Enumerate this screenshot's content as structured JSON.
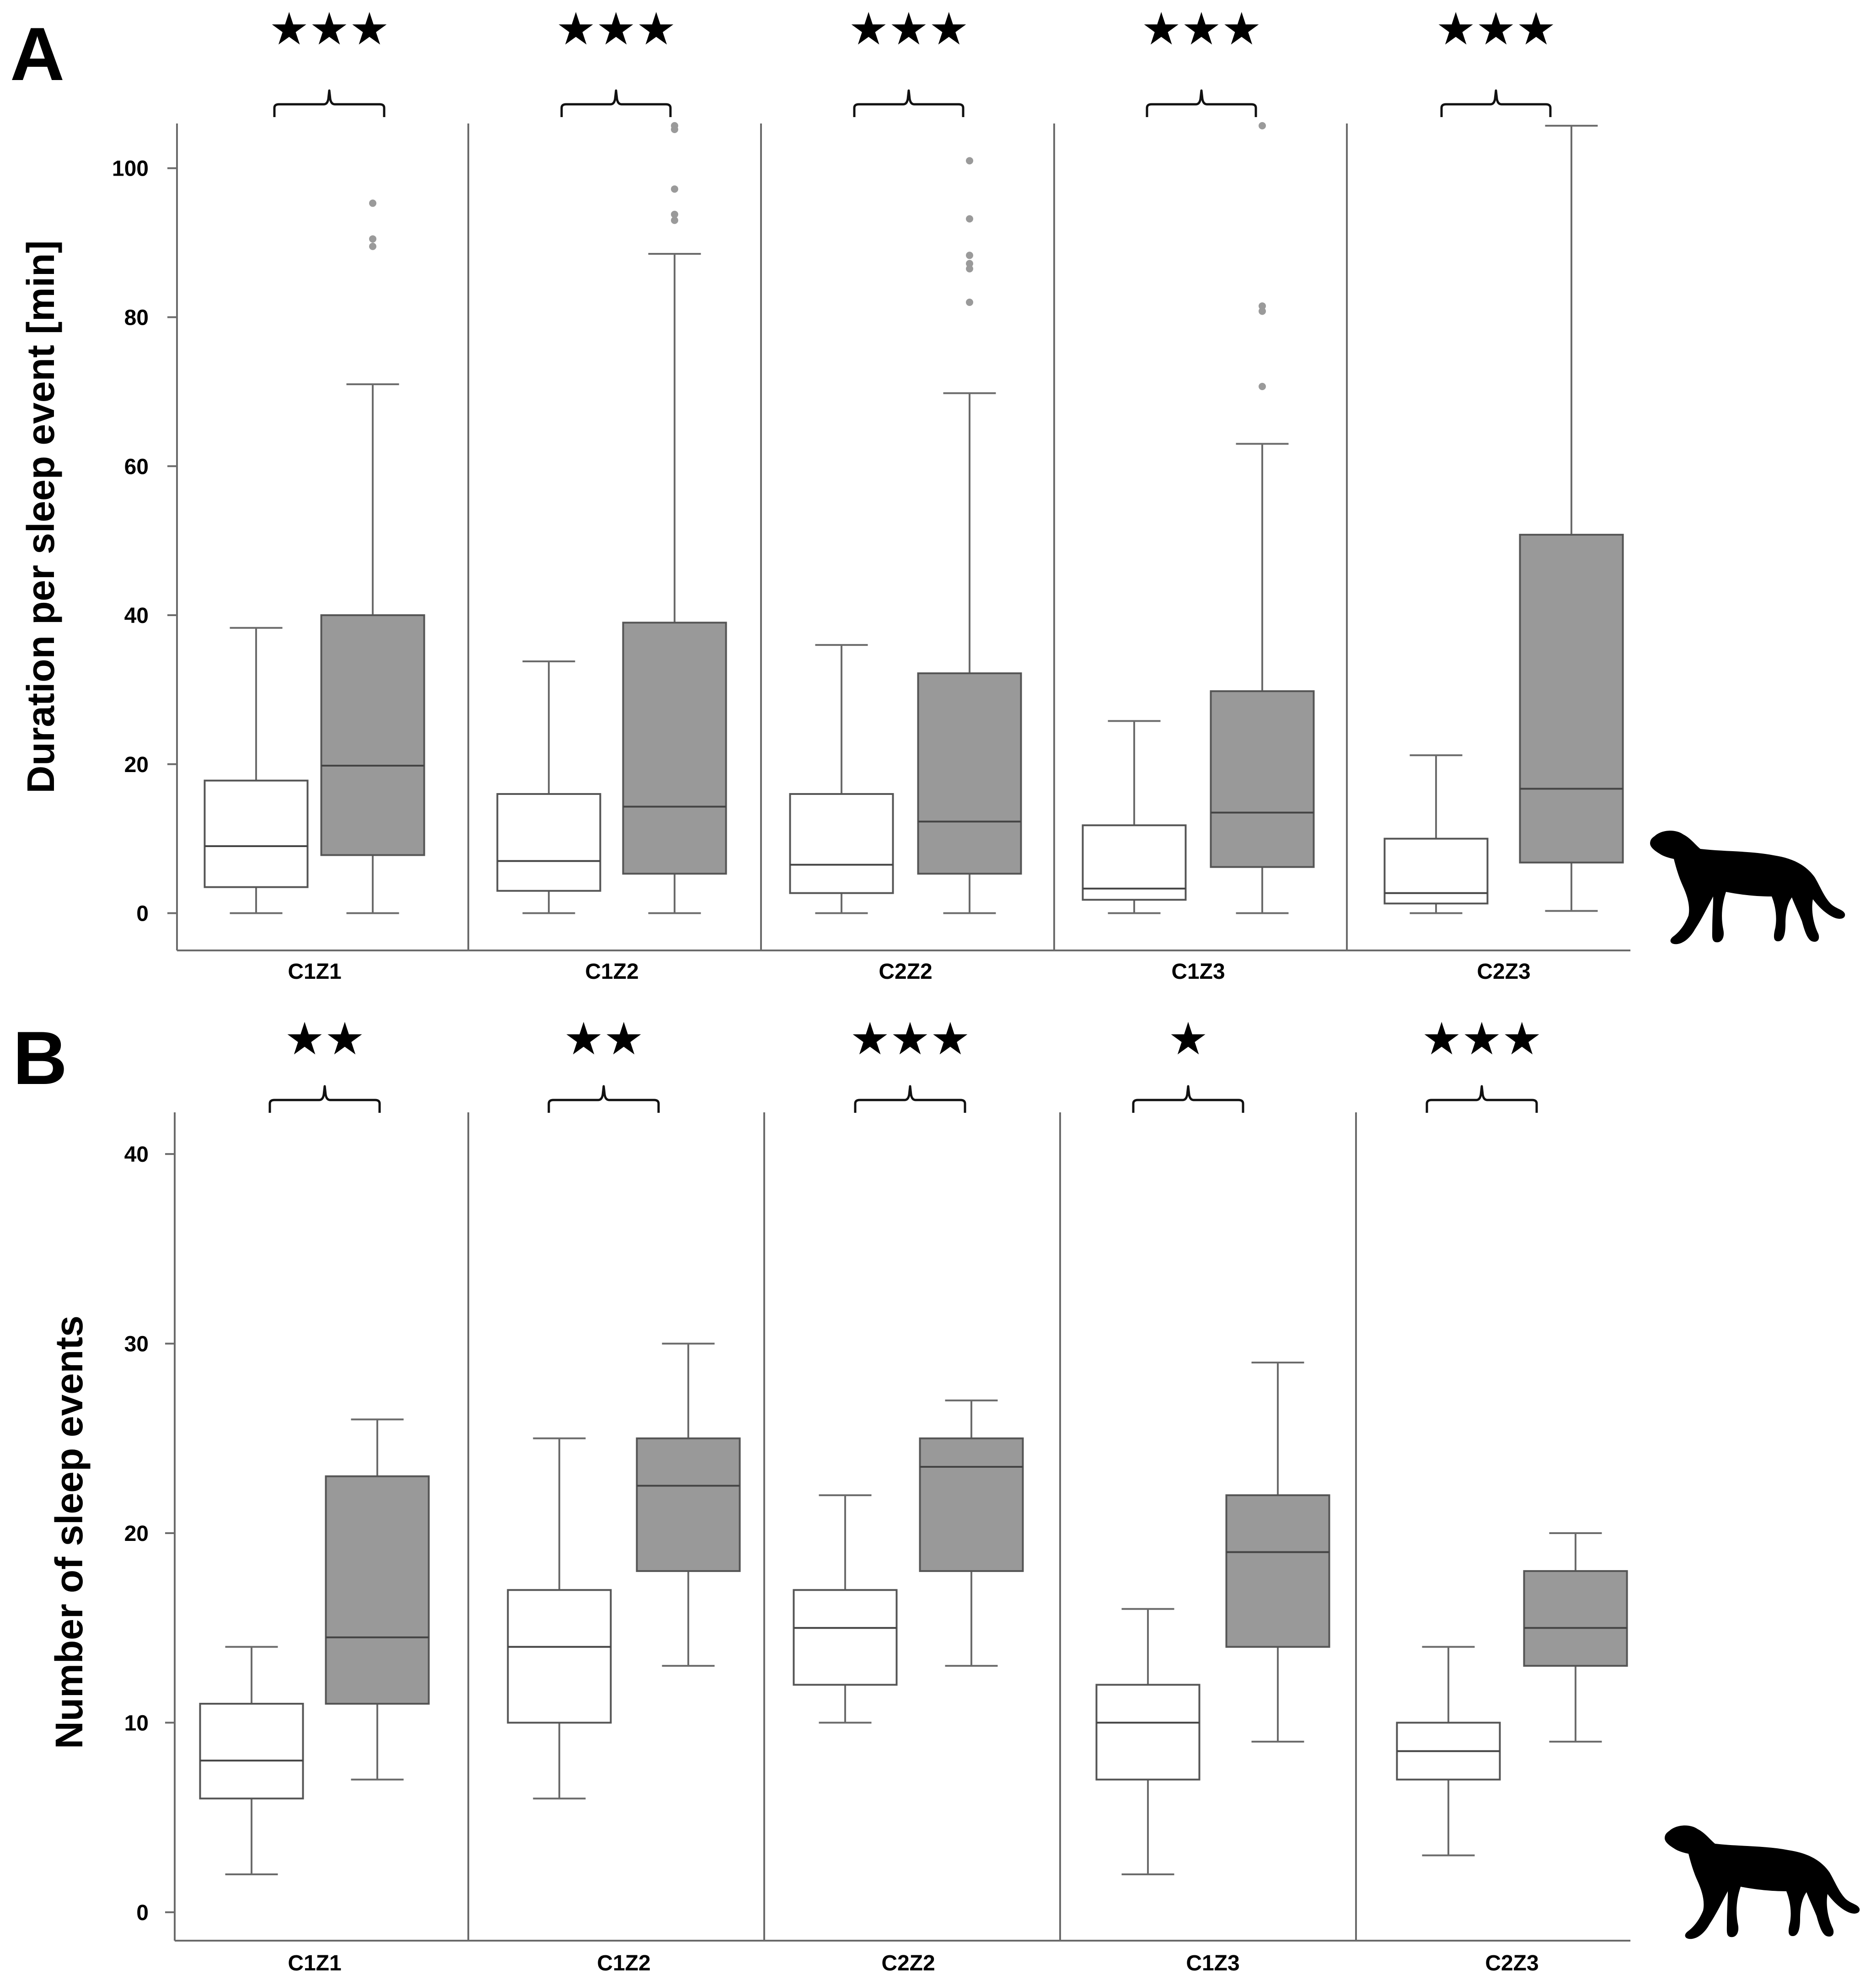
{
  "chart_data": [
    {
      "type": "box",
      "panel": "A",
      "ylabel": "Duration per sleep event [min]",
      "ylim": [
        -5,
        106
      ],
      "yticks": [
        0,
        20,
        40,
        60,
        80,
        100
      ],
      "groups": [
        {
          "label": "C1Z1",
          "significance": "★★★",
          "boxes": [
            {
              "fill": "#ffffff",
              "min": 0,
              "q1": 3.5,
              "median": 9,
              "q3": 17.8,
              "max": 38.3,
              "outliers": []
            },
            {
              "fill": "#999999",
              "min": 0,
              "q1": 7.8,
              "median": 19.8,
              "q3": 40,
              "max": 71,
              "outliers": [
                89.5,
                90.5,
                95.3
              ]
            }
          ]
        },
        {
          "label": "C1Z2",
          "significance": "★★★",
          "boxes": [
            {
              "fill": "#ffffff",
              "min": 0,
              "q1": 3,
              "median": 7,
              "q3": 16,
              "max": 33.8,
              "outliers": []
            },
            {
              "fill": "#999999",
              "min": 0,
              "q1": 5.3,
              "median": 14.3,
              "q3": 39,
              "max": 88.5,
              "outliers": [
                93,
                93.8,
                97.2,
                105.2,
                105.7
              ]
            }
          ]
        },
        {
          "label": "C2Z2",
          "significance": "★★★",
          "boxes": [
            {
              "fill": "#ffffff",
              "min": 0,
              "q1": 2.7,
              "median": 6.5,
              "q3": 16,
              "max": 36,
              "outliers": []
            },
            {
              "fill": "#999999",
              "min": 0,
              "q1": 5.3,
              "median": 12.3,
              "q3": 32.2,
              "max": 69.8,
              "outliers": [
                82,
                86.5,
                87.2,
                88.3,
                93.2,
                101
              ]
            }
          ]
        },
        {
          "label": "C1Z3",
          "significance": "★★★",
          "boxes": [
            {
              "fill": "#ffffff",
              "min": 0,
              "q1": 1.8,
              "median": 3.3,
              "q3": 11.8,
              "max": 25.8,
              "outliers": []
            },
            {
              "fill": "#999999",
              "min": 0,
              "q1": 6.2,
              "median": 13.5,
              "q3": 29.8,
              "max": 63,
              "outliers": [
                70.7,
                80.8,
                81.5,
                105.7
              ]
            }
          ]
        },
        {
          "label": "C2Z3",
          "significance": "★★★",
          "boxes": [
            {
              "fill": "#ffffff",
              "min": 0,
              "q1": 1.3,
              "median": 2.7,
              "q3": 10,
              "max": 21.2,
              "outliers": []
            },
            {
              "fill": "#999999",
              "min": 0.3,
              "q1": 6.8,
              "median": 16.7,
              "q3": 50.8,
              "max": 105.7,
              "outliers": []
            }
          ]
        }
      ]
    },
    {
      "type": "box",
      "panel": "B",
      "ylabel": "Number of sleep events",
      "ylim": [
        -1.5,
        42.2
      ],
      "yticks": [
        0,
        10,
        20,
        30,
        40
      ],
      "groups": [
        {
          "label": "C1Z1",
          "significance": "★★",
          "boxes": [
            {
              "fill": "#ffffff",
              "min": 2,
              "q1": 6,
              "median": 8,
              "q3": 11,
              "max": 14,
              "outliers": []
            },
            {
              "fill": "#999999",
              "min": 7,
              "q1": 11,
              "median": 14.5,
              "q3": 23,
              "max": 26,
              "outliers": []
            }
          ]
        },
        {
          "label": "C1Z2",
          "significance": "★★",
          "boxes": [
            {
              "fill": "#ffffff",
              "min": 6,
              "q1": 10,
              "median": 14,
              "q3": 17,
              "max": 25,
              "outliers": []
            },
            {
              "fill": "#999999",
              "min": 13,
              "q1": 18,
              "median": 22.5,
              "q3": 25,
              "max": 30,
              "outliers": []
            }
          ]
        },
        {
          "label": "C2Z2",
          "significance": "★★★",
          "boxes": [
            {
              "fill": "#ffffff",
              "min": 10,
              "q1": 12,
              "median": 15,
              "q3": 17,
              "max": 22,
              "outliers": []
            },
            {
              "fill": "#999999",
              "min": 13,
              "q1": 18,
              "median": 23.5,
              "q3": 25,
              "max": 27,
              "outliers": []
            }
          ]
        },
        {
          "label": "C1Z3",
          "significance": "★",
          "boxes": [
            {
              "fill": "#ffffff",
              "min": 2,
              "q1": 7,
              "median": 10,
              "q3": 12,
              "max": 16,
              "outliers": []
            },
            {
              "fill": "#999999",
              "min": 9,
              "q1": 14,
              "median": 19,
              "q3": 22,
              "max": 29,
              "outliers": []
            }
          ]
        },
        {
          "label": "C2Z3",
          "significance": "★★★",
          "boxes": [
            {
              "fill": "#ffffff",
              "min": 3,
              "q1": 7,
              "median": 8.5,
              "q3": 10,
              "max": 14,
              "outliers": []
            },
            {
              "fill": "#999999",
              "min": 9,
              "q1": 13,
              "median": 15,
              "q3": 18,
              "max": 20,
              "outliers": []
            }
          ]
        }
      ]
    }
  ],
  "colors": {
    "axis": "#6b6b6b",
    "gray_box": "#999999",
    "white_box": "#ffffff",
    "outlier": "#9a9a9a",
    "silhouette": "#000000"
  },
  "icons": [
    "cheetah-silhouette-icon"
  ]
}
